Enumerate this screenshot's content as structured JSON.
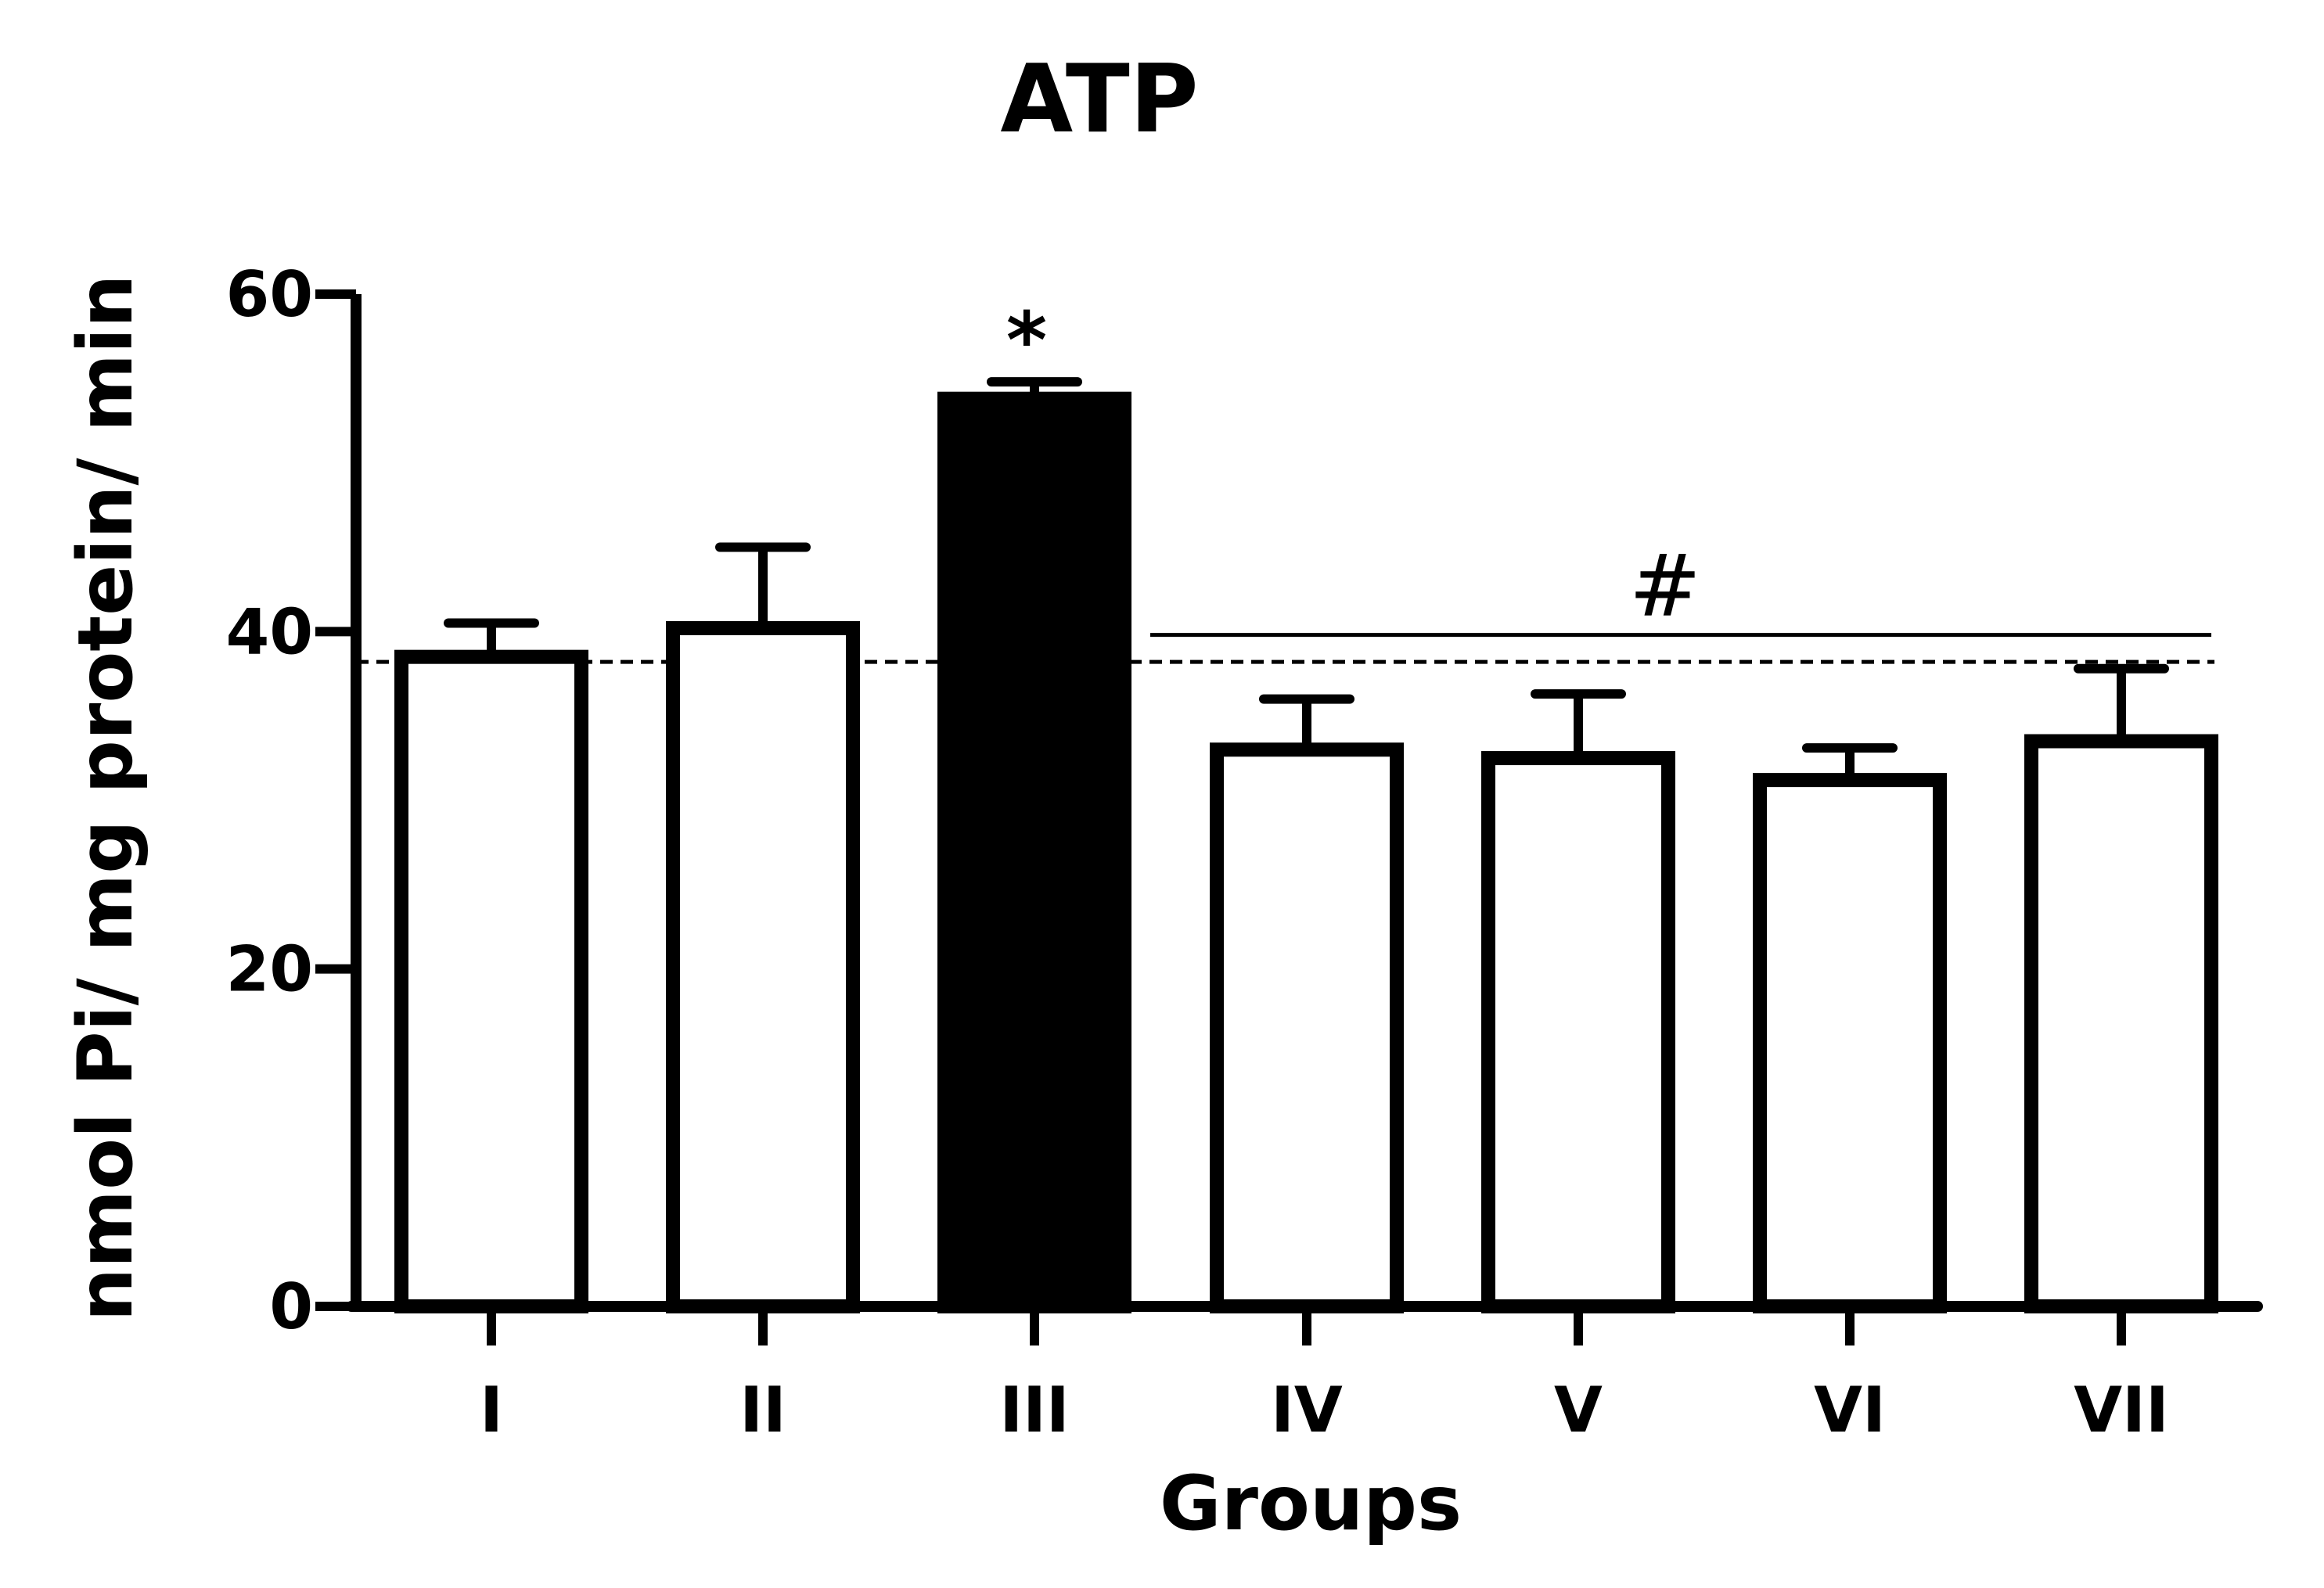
{
  "chart_data": {
    "type": "bar",
    "title": "ATP",
    "xlabel": "Groups",
    "ylabel": "nmol Pi/ mg protein/ min",
    "ylim": [
      0,
      60
    ],
    "yticks": [
      0,
      20,
      40,
      60
    ],
    "grid": false,
    "categories": [
      "I",
      "II",
      "III",
      "IV",
      "V",
      "VI",
      "VII"
    ],
    "values": [
      38.5,
      40.2,
      53.8,
      33.0,
      32.5,
      31.2,
      33.5
    ],
    "errors": [
      2.0,
      4.8,
      1.0,
      3.0,
      3.8,
      1.9,
      4.3
    ],
    "fills": [
      "#ffffff",
      "#ffffff",
      "#000000",
      "#ffffff",
      "#ffffff",
      "#ffffff",
      "#ffffff"
    ],
    "reference_line": {
      "value": 38.2,
      "style": "dashed"
    },
    "annotations": [
      {
        "text": "*",
        "category": "III"
      },
      {
        "text": "#",
        "from": "IV",
        "to": "VII",
        "bracket_value": 39.8
      }
    ]
  }
}
